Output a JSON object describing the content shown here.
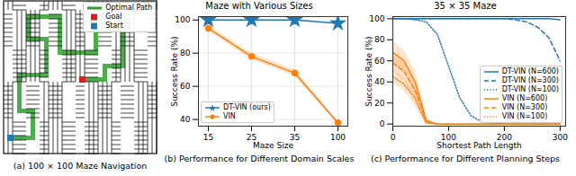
{
  "chart_data": [
    {
      "type": "maze",
      "caption": "(a) 100 × 100 Maze Navigation",
      "legend": "upper right",
      "series": [
        {
          "name": "Optimal Path",
          "color": "#2ca02c",
          "marker": "line"
        },
        {
          "name": "Goal",
          "color": "#e41a1c",
          "marker": "square"
        },
        {
          "name": "Start",
          "color": "#1f77b4",
          "marker": "square"
        }
      ]
    },
    {
      "type": "line",
      "title": "Maze with Various Sizes",
      "caption": "(b) Performance for Different Domain Scales",
      "x_label": "Maze Size",
      "y_label": "Success Rate (%)",
      "categories": [
        15,
        25,
        35,
        100
      ],
      "ylim": [
        36,
        102
      ],
      "yticks": [
        40,
        60,
        80,
        100
      ],
      "grid": true,
      "legend": "lower left",
      "series": [
        {
          "name": "DT-VIN (ours)",
          "color": "#1f77b4",
          "marker": "star",
          "line_style": "solid",
          "values": [
            100,
            100,
            100,
            98
          ]
        },
        {
          "name": "VIN",
          "color": "#ff7f0e",
          "marker": "circle",
          "line_style": "solid",
          "values": [
            95,
            78,
            68,
            38
          ],
          "errors": [
            1.5,
            2,
            2,
            1
          ]
        }
      ]
    },
    {
      "type": "line",
      "title": "35 × 35 Maze",
      "caption": "(c) Performance for Different Planning Steps",
      "x_label": "Shortest Path Length",
      "y_label": "Success Rate (%)",
      "x": [
        0,
        20,
        40,
        50,
        60,
        80,
        100,
        120,
        140,
        160,
        200,
        220,
        240,
        260,
        280,
        300
      ],
      "xlim": [
        0,
        310
      ],
      "xticks": [
        0,
        100,
        200,
        300
      ],
      "ylim": [
        -2,
        102
      ],
      "yticks": [
        0,
        20,
        40,
        60,
        80,
        100
      ],
      "grid": false,
      "legend": "lower right",
      "series": [
        {
          "name": "DT-VIN (N=600)",
          "color": "#1f77b4",
          "line_style": "solid",
          "values": [
            100,
            100,
            100,
            100,
            100,
            100,
            100,
            100,
            100,
            100,
            100,
            100,
            100,
            100,
            100,
            99
          ]
        },
        {
          "name": "DT-VIN (N=300)",
          "color": "#1f77b4",
          "line_style": "dashed",
          "values": [
            100,
            100,
            100,
            100,
            100,
            100,
            100,
            100,
            100,
            100,
            100,
            99,
            97,
            92,
            82,
            60
          ]
        },
        {
          "name": "DT-VIN (N=100)",
          "color": "#1f77b4",
          "line_style": "dotted",
          "values": [
            100,
            100,
            99,
            98,
            97,
            85,
            55,
            25,
            8,
            2,
            0,
            0,
            0,
            0,
            0,
            0
          ]
        },
        {
          "name": "VIN (N=600)",
          "color": "#ff7f0e",
          "line_style": "solid",
          "values": [
            68,
            60,
            40,
            22,
            3,
            0,
            0,
            0,
            0,
            0,
            0,
            0,
            0,
            0,
            0,
            0
          ],
          "errors": [
            10,
            10,
            10,
            8,
            3,
            0,
            0,
            0,
            0,
            0,
            0,
            0,
            0,
            0,
            0,
            0
          ]
        },
        {
          "name": "VIN (N=300)",
          "color": "#ff7f0e",
          "line_style": "dashed",
          "values": [
            58,
            50,
            32,
            18,
            2,
            0,
            0,
            0,
            0,
            0,
            0,
            0,
            0,
            0,
            0,
            0
          ],
          "errors": [
            8,
            8,
            8,
            6,
            2,
            0,
            0,
            0,
            0,
            0,
            0,
            0,
            0,
            0,
            0,
            0
          ]
        },
        {
          "name": "VIN (N=100)",
          "color": "#ff7f0e",
          "line_style": "dotted",
          "values": [
            45,
            38,
            24,
            12,
            1,
            0,
            0,
            0,
            0,
            0,
            0,
            0,
            0,
            0,
            0,
            0
          ],
          "errors": [
            6,
            6,
            6,
            5,
            1,
            0,
            0,
            0,
            0,
            0,
            0,
            0,
            0,
            0,
            0,
            0
          ]
        }
      ]
    }
  ]
}
